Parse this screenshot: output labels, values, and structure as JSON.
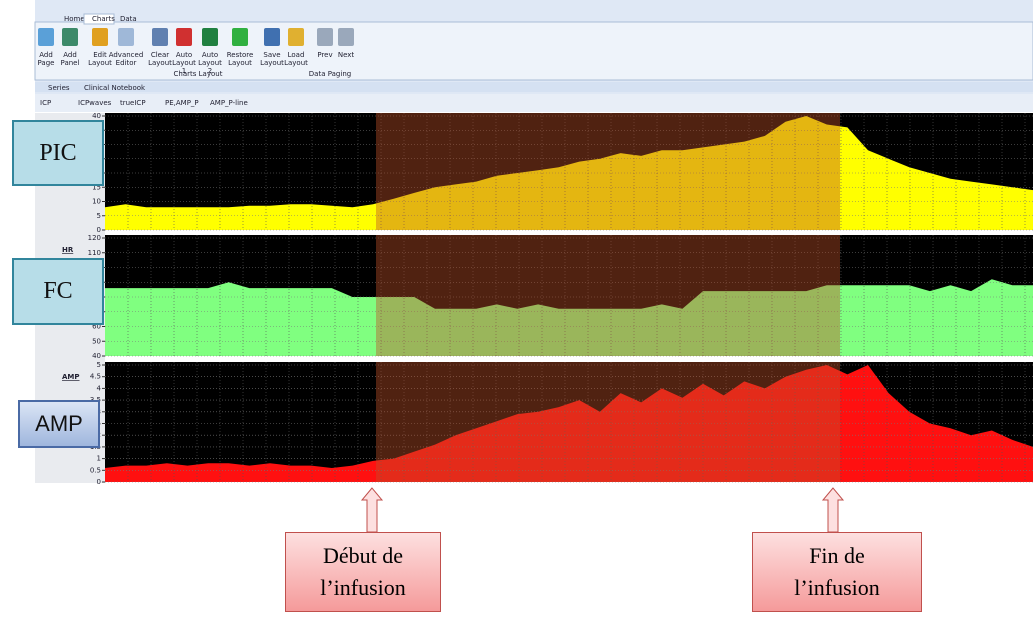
{
  "ribbon": {
    "tabs": [
      "Home",
      "Charts",
      "Data"
    ],
    "buttons": [
      "Add Page",
      "Add Panel",
      "Edit Layout",
      "Advanced Editor",
      "Clear Layout",
      "Auto Layout 1",
      "Auto Layout 2",
      "Restore Layout",
      "Save Layout",
      "Load Layout",
      "Prev",
      "Next"
    ],
    "groups": [
      "Charts Layout",
      "Data Paging"
    ]
  },
  "tabs": [
    "Series",
    "Clinical Notebook"
  ],
  "series_tabs": [
    "ICP",
    "ICPwaves",
    "trueICP",
    "PE,AMP_P",
    "AMP_P-line"
  ],
  "annotations": {
    "panels": [
      "PIC",
      "FC",
      "AMP"
    ],
    "start": "Début de l’infusion",
    "end": "Fin de l’infusion"
  },
  "chart_data": [
    {
      "type": "area",
      "color": "#ffff00",
      "ylim": [
        0,
        40
      ],
      "yticks": [
        0,
        5,
        10,
        15,
        20,
        25,
        30,
        35,
        40
      ],
      "grid": true,
      "values": [
        8,
        9,
        8,
        8,
        8,
        8,
        8,
        8.5,
        8.5,
        9,
        9,
        8.5,
        8,
        9,
        11,
        13,
        15,
        16,
        17,
        19,
        20,
        21,
        22,
        24,
        25,
        27,
        26,
        28,
        28,
        29,
        30,
        31,
        33,
        38,
        40,
        37,
        36,
        28,
        25,
        22,
        20,
        18,
        17,
        16,
        15,
        14
      ]
    },
    {
      "type": "area",
      "label": "HR",
      "color": "#80ff80",
      "ylim": [
        40,
        120
      ],
      "yticks": [
        40,
        50,
        60,
        70,
        80,
        90,
        100,
        110,
        120
      ],
      "grid": true,
      "values": [
        86,
        86,
        86,
        86,
        86,
        86,
        90,
        86,
        86,
        86,
        86,
        86,
        80,
        80,
        80,
        80,
        72,
        72,
        72,
        75,
        72,
        75,
        72,
        72,
        72,
        72,
        72,
        75,
        72,
        84,
        84,
        84,
        84,
        84,
        84,
        88,
        88,
        88,
        88,
        88,
        84,
        88,
        84,
        92,
        88,
        88
      ]
    },
    {
      "type": "area",
      "label": "AMP",
      "color": "#ff1010",
      "ylim": [
        0,
        5
      ],
      "yticks": [
        0,
        0.5,
        1,
        1.5,
        2,
        2.5,
        3,
        3.5,
        4,
        4.5,
        5
      ],
      "grid": true,
      "values": [
        0.6,
        0.7,
        0.7,
        0.8,
        0.7,
        0.8,
        0.8,
        0.7,
        0.8,
        0.7,
        0.7,
        0.6,
        0.7,
        0.9,
        1.0,
        1.3,
        1.6,
        2.0,
        2.3,
        2.6,
        2.9,
        3.0,
        3.2,
        3.5,
        3.0,
        3.8,
        3.4,
        4.0,
        3.6,
        4.2,
        3.7,
        4.3,
        4.0,
        4.5,
        4.8,
        5.0,
        4.6,
        5.0,
        3.8,
        3.0,
        2.5,
        2.3,
        2.0,
        2.2,
        1.8,
        1.5
      ]
    }
  ]
}
